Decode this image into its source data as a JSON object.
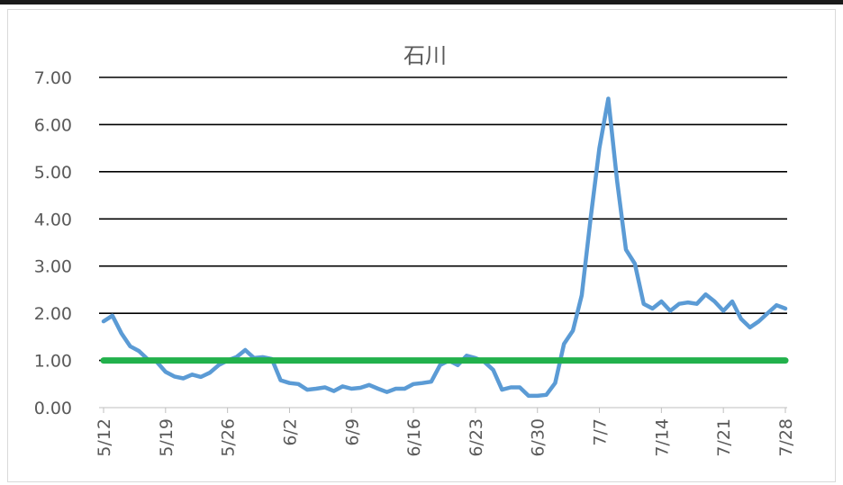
{
  "chart_data": {
    "type": "line",
    "title": "石川",
    "xlabel": "",
    "ylabel": "",
    "ylim": [
      0,
      7
    ],
    "yticks": [
      "0.00",
      "1.00",
      "2.00",
      "3.00",
      "4.00",
      "5.00",
      "6.00",
      "7.00"
    ],
    "xticks": [
      "5/12",
      "5/19",
      "5/26",
      "6/2",
      "6/9",
      "6/16",
      "6/23",
      "6/30",
      "7/7",
      "7/14",
      "7/21",
      "7/28"
    ],
    "grid": true,
    "colors": {
      "series": "#5b9bd5",
      "reference": "#22b14c",
      "grid": "#000000"
    },
    "x": [
      "5/12",
      "5/13",
      "5/14",
      "5/15",
      "5/16",
      "5/17",
      "5/18",
      "5/19",
      "5/20",
      "5/21",
      "5/22",
      "5/23",
      "5/24",
      "5/25",
      "5/26",
      "5/27",
      "5/28",
      "5/29",
      "5/30",
      "5/31",
      "6/1",
      "6/2",
      "6/3",
      "6/4",
      "6/5",
      "6/6",
      "6/7",
      "6/8",
      "6/9",
      "6/10",
      "6/11",
      "6/12",
      "6/13",
      "6/14",
      "6/15",
      "6/16",
      "6/17",
      "6/18",
      "6/19",
      "6/20",
      "6/21",
      "6/22",
      "6/23",
      "6/24",
      "6/25",
      "6/26",
      "6/27",
      "6/28",
      "6/29",
      "6/30",
      "7/1",
      "7/2",
      "7/3",
      "7/4",
      "7/5",
      "7/6",
      "7/7",
      "7/8",
      "7/9",
      "7/10",
      "7/11",
      "7/12",
      "7/13",
      "7/14",
      "7/15",
      "7/16",
      "7/17",
      "7/18",
      "7/19",
      "7/20",
      "7/21",
      "7/22",
      "7/23",
      "7/24",
      "7/25",
      "7/26",
      "7/27",
      "7/28"
    ],
    "series": [
      {
        "values": [
          1.83,
          1.95,
          1.58,
          1.3,
          1.2,
          1.02,
          0.97,
          0.76,
          0.66,
          0.62,
          0.7,
          0.65,
          0.74,
          0.9,
          1.0,
          1.07,
          1.22,
          1.05,
          1.07,
          1.03,
          0.58,
          0.52,
          0.5,
          0.38,
          0.4,
          0.43,
          0.35,
          0.45,
          0.4,
          0.42,
          0.48,
          0.4,
          0.33,
          0.4,
          0.4,
          0.5,
          0.52,
          0.55,
          0.9,
          1.0,
          0.9,
          1.1,
          1.05,
          0.97,
          0.8,
          0.38,
          0.43,
          0.43,
          0.25,
          0.25,
          0.27,
          0.52,
          1.35,
          1.63,
          2.38,
          4.0,
          5.5,
          6.55,
          4.8,
          3.35,
          3.05,
          2.2,
          2.1,
          2.25,
          2.05,
          2.2,
          2.23,
          2.2,
          2.4,
          2.25,
          2.05,
          2.25,
          1.88,
          1.7,
          1.83,
          2.0,
          2.17,
          2.1
        ]
      },
      {
        "values": [
          1,
          1,
          1,
          1,
          1,
          1,
          1,
          1,
          1,
          1,
          1,
          1,
          1,
          1,
          1,
          1,
          1,
          1,
          1,
          1,
          1,
          1,
          1,
          1,
          1,
          1,
          1,
          1,
          1,
          1,
          1,
          1,
          1,
          1,
          1,
          1,
          1,
          1,
          1,
          1,
          1,
          1,
          1,
          1,
          1,
          1,
          1,
          1,
          1,
          1,
          1,
          1,
          1,
          1,
          1,
          1,
          1,
          1,
          1,
          1,
          1,
          1,
          1,
          1,
          1,
          1,
          1,
          1,
          1,
          1,
          1,
          1,
          1,
          1,
          1,
          1,
          1,
          1
        ]
      }
    ]
  }
}
